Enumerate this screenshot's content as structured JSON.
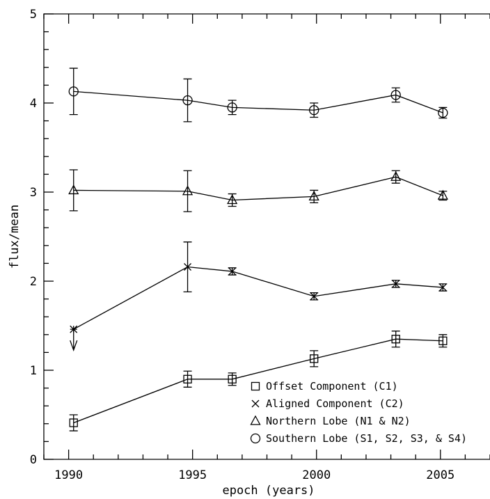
{
  "chart_data": {
    "type": "scatter",
    "title": "",
    "xlabel": "epoch (years)",
    "ylabel": "flux/mean",
    "xlim": [
      1989,
      2007
    ],
    "ylim": [
      0,
      5
    ],
    "xticks": [
      1990,
      1995,
      2000,
      2005
    ],
    "yticks": [
      0,
      1,
      2,
      3,
      4,
      5
    ],
    "legend_position": "bottom-right",
    "series": [
      {
        "name": "Offset Component (C1)",
        "marker": "square",
        "x": [
          1990.2,
          1994.8,
          1996.6,
          1999.9,
          2003.2,
          2005.1
        ],
        "y": [
          0.41,
          0.9,
          0.9,
          1.13,
          1.35,
          1.33
        ],
        "err": [
          0.09,
          0.09,
          0.07,
          0.09,
          0.09,
          0.07
        ]
      },
      {
        "name": "Aligned Component (C2)",
        "marker": "cross",
        "x": [
          1990.2,
          1994.8,
          1996.6,
          1999.9,
          2003.2,
          2005.1
        ],
        "y": [
          1.46,
          2.16,
          2.11,
          1.83,
          1.97,
          1.93
        ],
        "err": [
          0,
          0.28,
          0.04,
          0.04,
          0.04,
          0.04
        ],
        "upper_limit_index": 0
      },
      {
        "name": "Northern Lobe (N1 & N2)",
        "marker": "triangle",
        "x": [
          1990.2,
          1994.8,
          1996.6,
          1999.9,
          2003.2,
          2005.1
        ],
        "y": [
          3.02,
          3.01,
          2.91,
          2.95,
          3.17,
          2.96
        ],
        "err": [
          0.23,
          0.23,
          0.07,
          0.07,
          0.07,
          0.05
        ]
      },
      {
        "name": "Southern Lobe (S1, S2, S3, & S4)",
        "marker": "circle",
        "x": [
          1990.2,
          1994.8,
          1996.6,
          1999.9,
          2003.2,
          2005.1
        ],
        "y": [
          4.13,
          4.03,
          3.95,
          3.92,
          4.09,
          3.89
        ],
        "err": [
          0.26,
          0.24,
          0.08,
          0.08,
          0.08,
          0.06
        ]
      }
    ]
  }
}
